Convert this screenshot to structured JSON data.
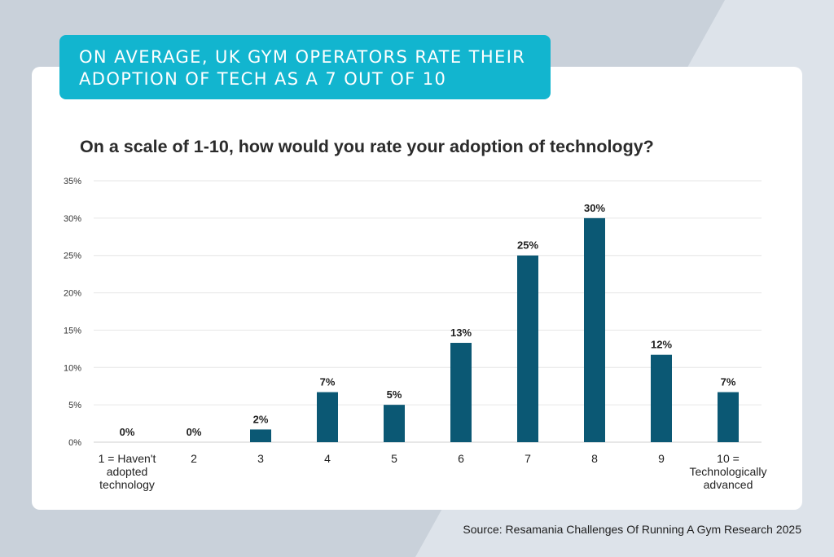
{
  "banner": {
    "line1": "ON AVERAGE, UK GYM OPERATORS RATE THEIR",
    "line2": "ADOPTION OF TECH AS A 7 OUT OF 10"
  },
  "source": "Source: Resamania Challenges Of Running A Gym Research 2025",
  "colors": {
    "bar": "#0b5874",
    "banner": "#12b5cf",
    "background": "#c9d1da",
    "card": "#ffffff"
  },
  "chart_data": {
    "type": "bar",
    "title": "On a scale of 1-10, how would you rate your adoption of technology?",
    "categories": [
      [
        "1 = Haven't",
        "adopted",
        "technology"
      ],
      [
        "2"
      ],
      [
        "3"
      ],
      [
        "4"
      ],
      [
        "5"
      ],
      [
        "6"
      ],
      [
        "7"
      ],
      [
        "8"
      ],
      [
        "9"
      ],
      [
        "10 =",
        "Technologically",
        "advanced"
      ]
    ],
    "values": [
      0,
      0,
      1.7,
      6.7,
      5,
      13.3,
      25,
      30,
      11.7,
      6.7
    ],
    "data_labels": [
      "0%",
      "0%",
      "2%",
      "7%",
      "5%",
      "13%",
      "25%",
      "30%",
      "12%",
      "7%"
    ],
    "ylim": [
      0,
      35
    ],
    "yticks": [
      "0%",
      "5%",
      "10%",
      "15%",
      "20%",
      "25%",
      "30%",
      "35%"
    ],
    "grid": true,
    "xlabel": "",
    "ylabel": ""
  }
}
